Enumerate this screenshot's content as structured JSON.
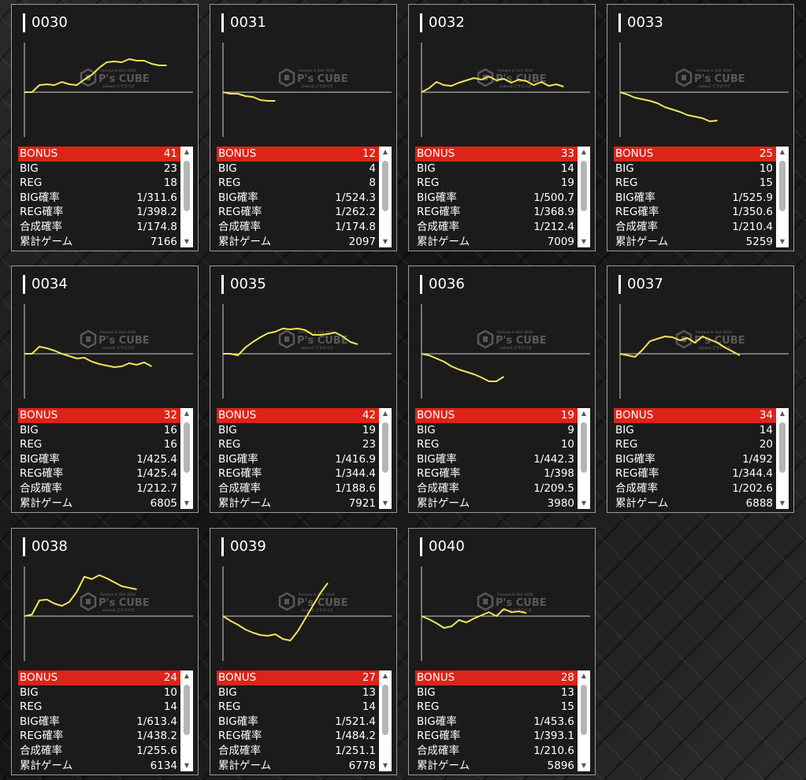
{
  "colors": {
    "line": "#f2e45a",
    "bonus_bg": "#dc2418",
    "panel_bg": "#1b1b1b",
    "axis": "#cfcfcf"
  },
  "watermark": {
    "brand": "P's CUBE",
    "top": "Fortune & Slot 2019",
    "sub": "sideo2 ピサロペガ"
  },
  "cards": [
    {
      "id": "0030",
      "stats": {
        "bonus": "41",
        "big": "23",
        "reg": "18",
        "big_rate": "1/311.6",
        "reg_rate": "1/398.2",
        "total_rate": "1/174.8",
        "games": "7166"
      },
      "series": [
        0,
        0,
        9,
        10,
        9,
        13,
        10,
        9,
        16,
        22,
        31,
        38,
        39,
        38,
        42,
        40,
        40,
        36,
        34,
        34
      ]
    },
    {
      "id": "0031",
      "stats": {
        "bonus": "12",
        "big": "4",
        "reg": "8",
        "big_rate": "1/524.3",
        "reg_rate": "1/262.2",
        "total_rate": "1/174.8",
        "games": "2097"
      },
      "series": [
        0,
        -2,
        -2,
        -5,
        -6,
        -10,
        -11,
        -11
      ]
    },
    {
      "id": "0032",
      "stats": {
        "bonus": "33",
        "big": "14",
        "reg": "19",
        "big_rate": "1/500.7",
        "reg_rate": "1/368.9",
        "total_rate": "1/212.4",
        "games": "7009"
      },
      "series": [
        0,
        5,
        13,
        9,
        8,
        12,
        15,
        18,
        16,
        20,
        15,
        17,
        12,
        16,
        14,
        9,
        13,
        8,
        10,
        7
      ]
    },
    {
      "id": "0033",
      "stats": {
        "bonus": "25",
        "big": "10",
        "reg": "15",
        "big_rate": "1/525.9",
        "reg_rate": "1/350.6",
        "total_rate": "1/210.4",
        "games": "5259"
      },
      "series": [
        0,
        -3,
        -7,
        -9,
        -11,
        -14,
        -19,
        -22,
        -25,
        -29,
        -31,
        -33,
        -37,
        -36
      ]
    },
    {
      "id": "0034",
      "stats": {
        "bonus": "32",
        "big": "16",
        "reg": "16",
        "big_rate": "1/425.4",
        "reg_rate": "1/425.4",
        "total_rate": "1/212.7",
        "games": "6805"
      },
      "series": [
        0,
        0,
        9,
        7,
        4,
        0,
        -3,
        -6,
        -5,
        -10,
        -13,
        -15,
        -17,
        -16,
        -12,
        -14,
        -11,
        -16
      ]
    },
    {
      "id": "0035",
      "stats": {
        "bonus": "42",
        "big": "19",
        "reg": "23",
        "big_rate": "1/416.9",
        "reg_rate": "1/344.4",
        "total_rate": "1/188.6",
        "games": "7921"
      },
      "series": [
        0,
        0,
        -2,
        8,
        15,
        21,
        26,
        28,
        32,
        31,
        32,
        30,
        24,
        24,
        25,
        27,
        22,
        15,
        12
      ]
    },
    {
      "id": "0036",
      "stats": {
        "bonus": "19",
        "big": "9",
        "reg": "10",
        "big_rate": "1/442.3",
        "reg_rate": "1/398",
        "total_rate": "1/209.5",
        "games": "3980"
      },
      "series": [
        0,
        -2,
        -6,
        -10,
        -16,
        -20,
        -23,
        -26,
        -30,
        -35,
        -35,
        -29
      ]
    },
    {
      "id": "0037",
      "stats": {
        "bonus": "34",
        "big": "14",
        "reg": "20",
        "big_rate": "1/492",
        "reg_rate": "1/344.4",
        "total_rate": "1/202.6",
        "games": "6888"
      },
      "series": [
        0,
        -2,
        -4,
        5,
        16,
        19,
        22,
        21,
        17,
        20,
        14,
        22,
        18,
        14,
        8,
        3,
        -2
      ]
    },
    {
      "id": "0038",
      "stats": {
        "bonus": "24",
        "big": "10",
        "reg": "14",
        "big_rate": "1/613.4",
        "reg_rate": "1/438.2",
        "total_rate": "1/255.6",
        "games": "6134"
      },
      "series": [
        0,
        2,
        20,
        21,
        16,
        13,
        18,
        31,
        50,
        47,
        52,
        48,
        43,
        38,
        36,
        34
      ]
    },
    {
      "id": "0039",
      "stats": {
        "bonus": "27",
        "big": "13",
        "reg": "14",
        "big_rate": "1/521.4",
        "reg_rate": "1/484.2",
        "total_rate": "1/251.1",
        "games": "6778"
      },
      "series": [
        0,
        -6,
        -11,
        -17,
        -21,
        -24,
        -25,
        -23,
        -29,
        -31,
        -19,
        -3,
        13,
        29,
        42
      ]
    },
    {
      "id": "0040",
      "stats": {
        "bonus": "28",
        "big": "13",
        "reg": "15",
        "big_rate": "1/453.6",
        "reg_rate": "1/393.1",
        "total_rate": "1/210.6",
        "games": "5896"
      },
      "series": [
        0,
        -4,
        -9,
        -15,
        -13,
        -5,
        -8,
        -3,
        1,
        5,
        0,
        9,
        5,
        6,
        4
      ]
    }
  ],
  "row_labels": {
    "bonus": "BONUS",
    "big": "BIG",
    "reg": "REG",
    "big_rate": "BIG確率",
    "reg_rate": "REG確率",
    "total_rate": "合成確率",
    "games": "累計ゲーム"
  }
}
